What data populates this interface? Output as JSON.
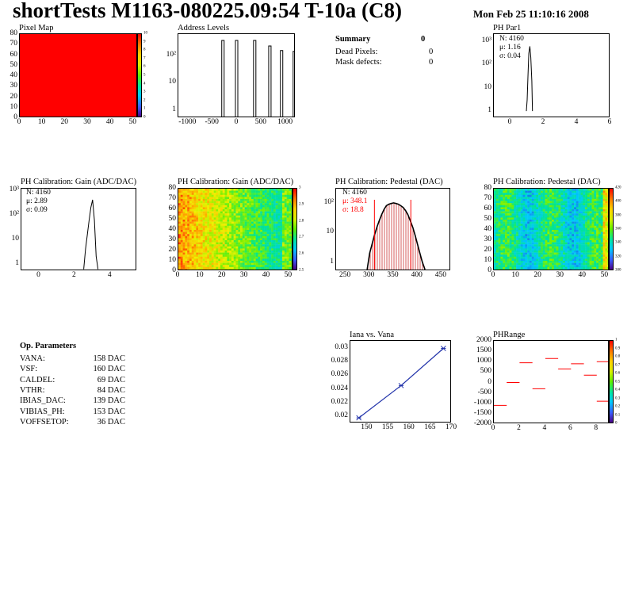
{
  "header": {
    "title": "shortTests M1163-080225.09:54 T-10a (C8)",
    "date": "Mon Feb 25 11:10:16 2008"
  },
  "colors": {
    "red": "#ff0000",
    "black": "#000000",
    "blue": "#2233aa",
    "hatch": "#cc3333"
  },
  "summary": {
    "heading": "Summary",
    "heading_value": "0",
    "rows": [
      {
        "label": "Dead Pixels:",
        "value": "0"
      },
      {
        "label": "Mask defects:",
        "value": "0"
      }
    ]
  },
  "op_params": {
    "heading": "Op. Parameters",
    "rows": [
      {
        "name": "VANA:",
        "value": "158 DAC"
      },
      {
        "name": "VSF:",
        "value": "160 DAC"
      },
      {
        "name": "CALDEL:",
        "value": "69 DAC"
      },
      {
        "name": "VTHR:",
        "value": "84 DAC"
      },
      {
        "name": "IBIAS_DAC:",
        "value": "139 DAC"
      },
      {
        "name": "VIBIAS_PH:",
        "value": "153 DAC"
      },
      {
        "name": "VOFFSETOP:",
        "value": "36 DAC"
      }
    ]
  },
  "chart_data": [
    {
      "id": "pixel_map",
      "type": "heatmap",
      "title": "Pixel Map",
      "xlim": [
        0,
        52
      ],
      "ylim": [
        0,
        80
      ],
      "x_ticks": [
        "0",
        "10",
        "20",
        "30",
        "40",
        "50"
      ],
      "y_ticks": [
        "0",
        "10",
        "20",
        "30",
        "40",
        "50",
        "60",
        "70",
        "80"
      ],
      "palette_ticks": [
        "0",
        "1",
        "2",
        "3",
        "4",
        "5",
        "6",
        "7",
        "8",
        "9",
        "10"
      ],
      "fill_value": 10
    },
    {
      "id": "address_levels",
      "type": "line",
      "title": "Address Levels",
      "xlim": [
        -1200,
        1200
      ],
      "log_y": true,
      "x_ticks": [
        "-1000",
        "-500",
        "0",
        "500",
        "1000"
      ],
      "y_ticks": [
        "1",
        "10",
        "10²"
      ],
      "peaks": [
        {
          "x": -280,
          "y": 350
        },
        {
          "x": 0,
          "y": 350
        },
        {
          "x": 370,
          "y": 350
        },
        {
          "x": 680,
          "y": 220
        },
        {
          "x": 920,
          "y": 150
        },
        {
          "x": 1180,
          "y": 140
        }
      ]
    },
    {
      "id": "ph_par1",
      "type": "line",
      "title": "PH Par1",
      "xlim": [
        -1,
        6
      ],
      "log_y": true,
      "x_ticks": [
        "0",
        "2",
        "4",
        "6"
      ],
      "y_ticks": [
        "1",
        "10",
        "10²",
        "10³"
      ],
      "stats": {
        "N": "N: 4160",
        "mean": "μ: 1.16",
        "sigma": "σ: 0.04"
      },
      "curve": [
        [
          0.95,
          1
        ],
        [
          1.0,
          3
        ],
        [
          1.05,
          30
        ],
        [
          1.1,
          300
        ],
        [
          1.16,
          600
        ],
        [
          1.22,
          200
        ],
        [
          1.28,
          20
        ],
        [
          1.32,
          1
        ]
      ]
    },
    {
      "id": "gain_hist",
      "type": "line",
      "title": "PH Calibration: Gain (ADC/DAC)",
      "xlim": [
        -1,
        5.5
      ],
      "log_y": true,
      "x_ticks": [
        "0",
        "2",
        "4"
      ],
      "y_ticks": [
        "1",
        "10",
        "10²",
        "10³"
      ],
      "stats": {
        "N": "N: 4160",
        "mean": "μ: 2.89",
        "sigma": "σ: 0.09"
      },
      "curve": [
        [
          2.5,
          0.6
        ],
        [
          2.6,
          4
        ],
        [
          2.7,
          15
        ],
        [
          2.8,
          60
        ],
        [
          2.9,
          200
        ],
        [
          3.0,
          420
        ],
        [
          3.1,
          60
        ],
        [
          3.2,
          2
        ],
        [
          3.3,
          0.6
        ]
      ]
    },
    {
      "id": "gain_map",
      "type": "heatmap",
      "title": "PH Calibration: Gain (ADC/DAC)",
      "xlim": [
        0,
        52
      ],
      "ylim": [
        0,
        80
      ],
      "x_ticks": [
        "0",
        "10",
        "20",
        "30",
        "40",
        "50"
      ],
      "y_ticks": [
        "0",
        "10",
        "20",
        "30",
        "40",
        "50",
        "60",
        "70",
        "80"
      ],
      "palette_ticks": [
        "2.5",
        "2.6",
        "2.7",
        "2.8",
        "2.9",
        "3"
      ]
    },
    {
      "id": "pedestal_hist",
      "type": "area",
      "title": "PH Calibration: Pedestal (DAC)",
      "xlim": [
        230,
        470
      ],
      "log_y": true,
      "x_ticks": [
        "250",
        "300",
        "350",
        "400",
        "450"
      ],
      "y_ticks": [
        "1",
        "10",
        "10²"
      ],
      "stats": {
        "N": "N: 4160",
        "mean": "μ: 348.1",
        "sigma": "σ: 18.8"
      },
      "markers": [
        310,
        386
      ],
      "curve": [
        [
          295,
          0.6
        ],
        [
          300,
          2
        ],
        [
          305,
          4
        ],
        [
          310,
          8
        ],
        [
          315,
          15
        ],
        [
          320,
          25
        ],
        [
          325,
          40
        ],
        [
          330,
          60
        ],
        [
          335,
          80
        ],
        [
          340,
          90
        ],
        [
          345,
          95
        ],
        [
          350,
          100
        ],
        [
          355,
          95
        ],
        [
          360,
          90
        ],
        [
          365,
          80
        ],
        [
          370,
          70
        ],
        [
          375,
          55
        ],
        [
          380,
          40
        ],
        [
          385,
          25
        ],
        [
          390,
          15
        ],
        [
          395,
          8
        ],
        [
          400,
          4
        ],
        [
          405,
          2
        ],
        [
          410,
          1
        ],
        [
          415,
          0.6
        ]
      ]
    },
    {
      "id": "pedestal_map",
      "type": "heatmap",
      "title": "PH Calibration: Pedestal (DAC)",
      "xlim": [
        0,
        52
      ],
      "ylim": [
        0,
        80
      ],
      "x_ticks": [
        "0",
        "10",
        "20",
        "30",
        "40",
        "50"
      ],
      "y_ticks": [
        "0",
        "10",
        "20",
        "30",
        "40",
        "50",
        "60",
        "70",
        "80"
      ],
      "palette_ticks": [
        "300",
        "320",
        "340",
        "360",
        "380",
        "400",
        "420"
      ]
    },
    {
      "id": "iana_vana",
      "type": "line",
      "title": "Iana vs. Vana",
      "xlim": [
        146,
        170
      ],
      "ylim": [
        0.019,
        0.031
      ],
      "x_ticks": [
        "150",
        "155",
        "160",
        "165",
        "170"
      ],
      "y_ticks": [
        "0.02",
        "0.022",
        "0.024",
        "0.026",
        "0.028",
        "0.03"
      ],
      "points": [
        [
          148,
          0.0198
        ],
        [
          158,
          0.0245
        ],
        [
          168,
          0.0299
        ]
      ]
    },
    {
      "id": "ph_range",
      "type": "scatter",
      "title": "PHRange",
      "xlim": [
        0,
        9
      ],
      "ylim": [
        -2000,
        2000
      ],
      "x_ticks": [
        "0",
        "2",
        "4",
        "6",
        "8"
      ],
      "y_ticks": [
        "-2000",
        "-1500",
        "-1000",
        "-500",
        "0",
        "500",
        "1000",
        "1500",
        "2000"
      ],
      "palette_ticks": [
        "0",
        "0.1",
        "0.2",
        "0.3",
        "0.4",
        "0.5",
        "0.6",
        "0.7",
        "0.8",
        "0.9",
        "1"
      ],
      "segments": [
        [
          0,
          -1100
        ],
        [
          1,
          0
        ],
        [
          2,
          950
        ],
        [
          3,
          -300
        ],
        [
          4,
          1150
        ],
        [
          5,
          650
        ],
        [
          6,
          900
        ],
        [
          7,
          350
        ],
        [
          8,
          -900
        ],
        [
          8,
          1000
        ]
      ]
    }
  ]
}
